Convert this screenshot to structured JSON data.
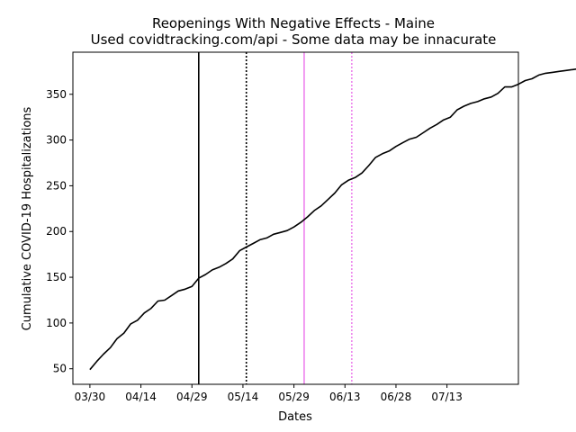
{
  "chart_data": {
    "type": "line",
    "title": "Reopenings With Negative Effects - Maine",
    "subtitle": "Used covidtracking.com/api - Some data may be innacurate",
    "xlabel": "Dates",
    "ylabel": "Cumulative COVID-19 Hospitalizations",
    "x_ticks": [
      "03/30",
      "04/14",
      "04/29",
      "05/14",
      "05/29",
      "06/13",
      "06/28",
      "07/13"
    ],
    "x_range": [
      "03/25",
      "08/03"
    ],
    "y_ticks": [
      50,
      100,
      150,
      200,
      250,
      300,
      350
    ],
    "ylim": [
      33,
      396
    ],
    "grid": false,
    "series": [
      {
        "color": "#000000",
        "points": [
          [
            "03/30",
            49
          ],
          [
            "04/01",
            58
          ],
          [
            "04/03",
            66
          ],
          [
            "04/05",
            73
          ],
          [
            "04/07",
            83
          ],
          [
            "04/09",
            89
          ],
          [
            "04/11",
            99
          ],
          [
            "04/13",
            103
          ],
          [
            "04/15",
            111
          ],
          [
            "04/17",
            116
          ],
          [
            "04/19",
            124
          ],
          [
            "04/21",
            125
          ],
          [
            "04/23",
            130
          ],
          [
            "04/25",
            135
          ],
          [
            "04/27",
            137
          ],
          [
            "04/29",
            140
          ],
          [
            "05/01",
            149
          ],
          [
            "05/03",
            153
          ],
          [
            "05/05",
            158
          ],
          [
            "05/07",
            161
          ],
          [
            "05/09",
            165
          ],
          [
            "05/11",
            170
          ],
          [
            "05/13",
            179
          ],
          [
            "05/15",
            183
          ],
          [
            "05/17",
            187
          ],
          [
            "05/19",
            191
          ],
          [
            "05/21",
            193
          ],
          [
            "05/23",
            197
          ],
          [
            "05/25",
            199
          ],
          [
            "05/27",
            201
          ],
          [
            "05/29",
            205
          ],
          [
            "05/31",
            210
          ],
          [
            "06/02",
            216
          ],
          [
            "06/04",
            223
          ],
          [
            "06/06",
            228
          ],
          [
            "06/08",
            235
          ],
          [
            "06/10",
            242
          ],
          [
            "06/12",
            251
          ],
          [
            "06/14",
            256
          ],
          [
            "06/16",
            259
          ],
          [
            "06/18",
            264
          ],
          [
            "06/20",
            272
          ],
          [
            "06/22",
            281
          ],
          [
            "06/24",
            285
          ],
          [
            "06/26",
            288
          ],
          [
            "06/28",
            293
          ],
          [
            "06/30",
            297
          ],
          [
            "07/02",
            301
          ],
          [
            "07/04",
            303
          ],
          [
            "07/06",
            308
          ],
          [
            "07/08",
            313
          ],
          [
            "07/10",
            317
          ],
          [
            "07/12",
            322
          ],
          [
            "07/14",
            325
          ],
          [
            "07/16",
            333
          ],
          [
            "07/18",
            337
          ],
          [
            "07/20",
            340
          ],
          [
            "07/22",
            342
          ],
          [
            "07/24",
            345
          ],
          [
            "07/26",
            347
          ],
          [
            "07/28",
            351
          ],
          [
            "07/30",
            358
          ],
          [
            "08/01",
            358
          ],
          [
            "08/03",
            361
          ],
          [
            "08/05",
            365
          ],
          [
            "08/07",
            367
          ],
          [
            "08/09",
            371
          ],
          [
            "08/11",
            373
          ],
          [
            "08/13",
            374
          ],
          [
            "08/15",
            375
          ],
          [
            "08/17",
            376
          ],
          [
            "08/19",
            377
          ],
          [
            "08/21",
            378
          ],
          [
            "08/23",
            379
          ],
          [
            "08/24",
            380
          ]
        ]
      }
    ],
    "vertical_lines": [
      {
        "x": "05/01",
        "color": "#000000",
        "style": "solid"
      },
      {
        "x": "05/15",
        "color": "#000000",
        "style": "dotted"
      },
      {
        "x": "06/01",
        "color": "#ee82ee",
        "style": "solid"
      },
      {
        "x": "06/15",
        "color": "#ee82ee",
        "style": "dotted"
      }
    ]
  }
}
